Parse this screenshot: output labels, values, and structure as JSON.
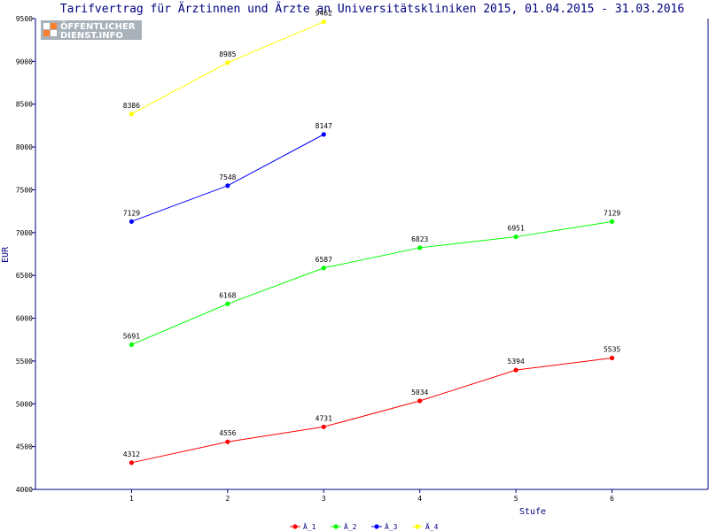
{
  "chart_data": {
    "type": "line",
    "title": "Tarifvertrag für Ärztinnen und Ärzte an Universitätskliniken 2015, 01.04.2015 - 31.03.2016",
    "xlabel": "Stufe",
    "ylabel": "EUR",
    "xlim": [
      0,
      7
    ],
    "ylim": [
      4000,
      9500
    ],
    "x_ticks": [
      1,
      2,
      3,
      4,
      5,
      6
    ],
    "y_ticks": [
      4000,
      4500,
      5000,
      5500,
      6000,
      6500,
      7000,
      7500,
      8000,
      8500,
      9000,
      9500
    ],
    "grid": false,
    "legend_position": "bottom-center",
    "series": [
      {
        "name": "Ä_1",
        "color": "#ff0000",
        "x": [
          1,
          2,
          3,
          4,
          5,
          6
        ],
        "values": [
          4312,
          4556,
          4731,
          5034,
          5394,
          5535
        ]
      },
      {
        "name": "Ä_2",
        "color": "#00ff00",
        "x": [
          1,
          2,
          3,
          4,
          5,
          6
        ],
        "values": [
          5691,
          6168,
          6587,
          6823,
          6951,
          7129
        ]
      },
      {
        "name": "Ä_3",
        "color": "#0000ff",
        "x": [
          1,
          2,
          3
        ],
        "values": [
          7129,
          7548,
          8147
        ]
      },
      {
        "name": "Ä_4",
        "color": "#ffff00",
        "x": [
          1,
          2,
          3
        ],
        "values": [
          8386,
          8985,
          9462
        ]
      }
    ]
  },
  "logo": {
    "line1": "ÖFFENTLICHER",
    "line2": "DIENST.INFO",
    "icon": "grid-logo-icon"
  }
}
